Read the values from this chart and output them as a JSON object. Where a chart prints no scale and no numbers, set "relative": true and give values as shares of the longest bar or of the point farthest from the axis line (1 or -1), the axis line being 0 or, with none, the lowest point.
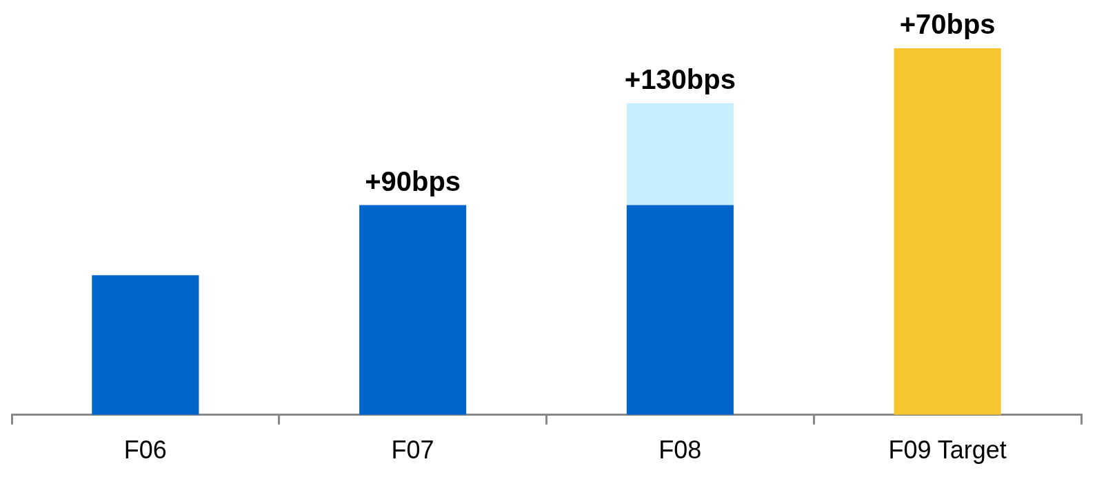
{
  "chart_data": {
    "type": "bar",
    "stacked": true,
    "relative": true,
    "categories": [
      "F06",
      "F07",
      "F08",
      "F09 Target"
    ],
    "series": [
      {
        "color": "#0066cc",
        "values": [
          0.381,
          0.572,
          0.572,
          null
        ]
      },
      {
        "color": "#c6eefc",
        "values": [
          null,
          null,
          0.278,
          null
        ]
      },
      {
        "color": "#f7c52f",
        "values": [
          null,
          null,
          null,
          1
        ]
      }
    ],
    "annotations": [
      {
        "text": "+90bps",
        "x": "F07",
        "y": 0.572
      },
      {
        "text": "+130bps",
        "x": "F08",
        "y": 0.85
      },
      {
        "text": "+70bps",
        "x": "F09 Target",
        "y": 1
      }
    ],
    "legend": false,
    "grid": false
  }
}
